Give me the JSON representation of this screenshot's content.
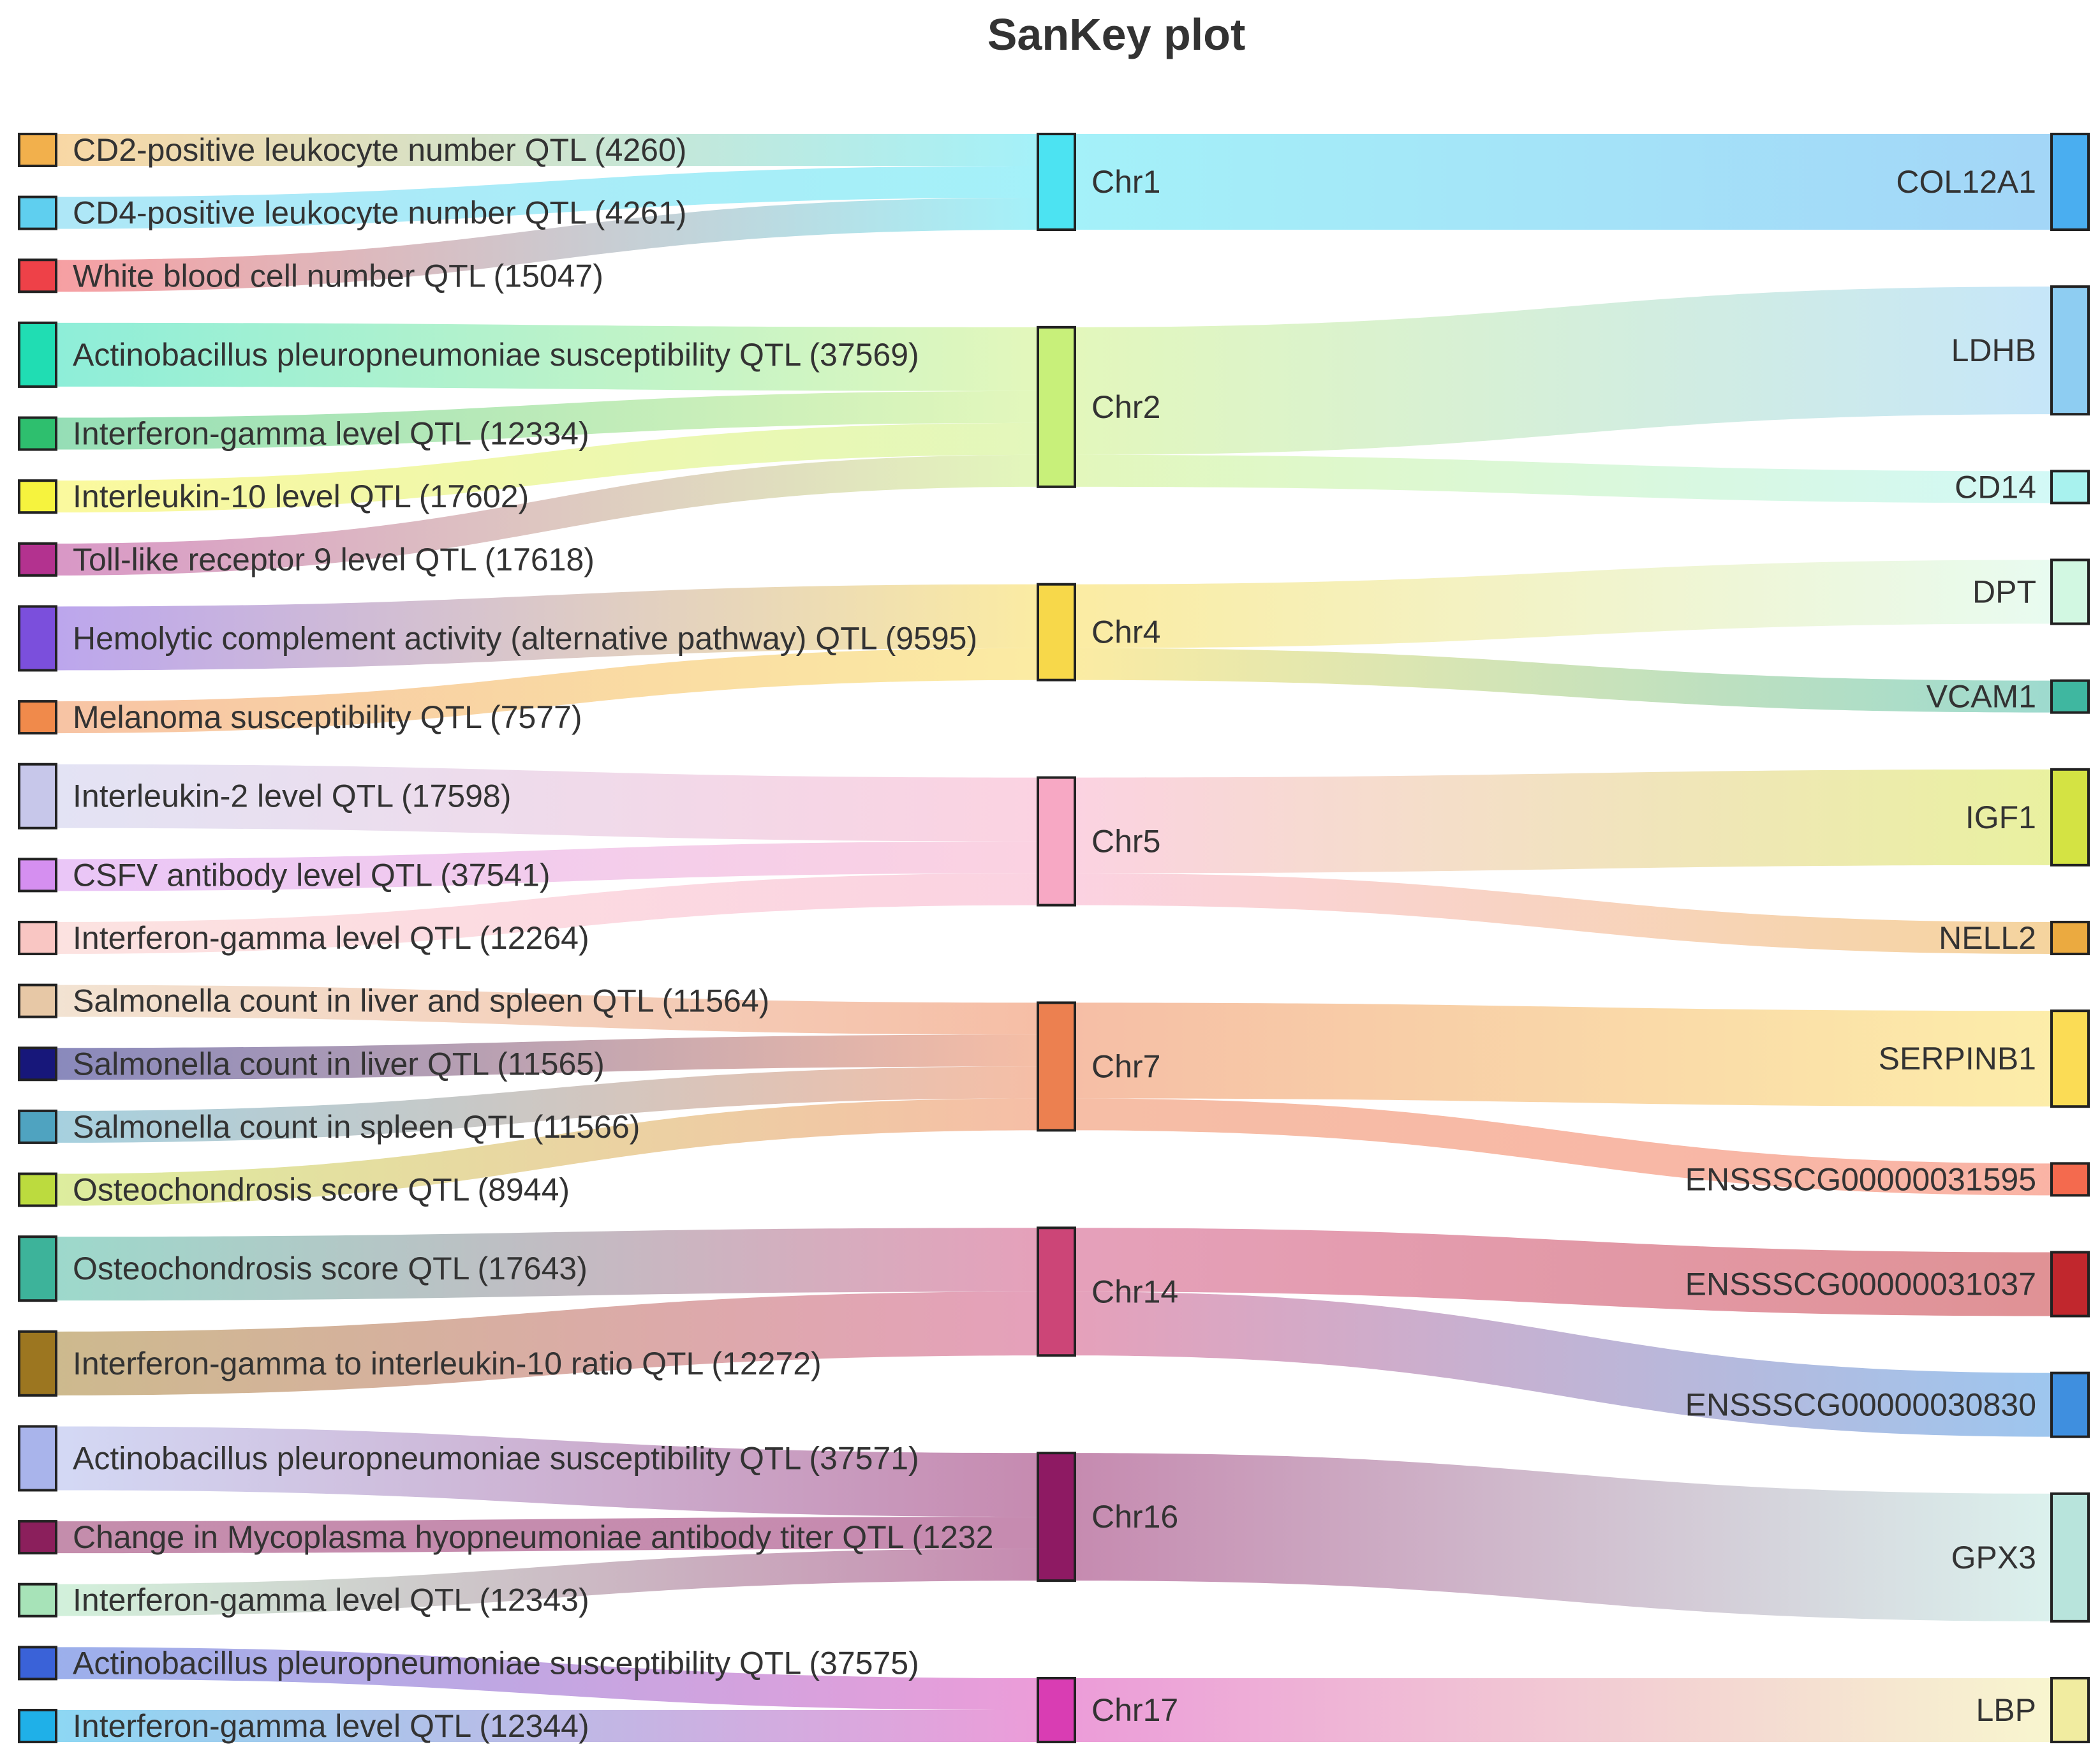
{
  "chart_data": {
    "type": "sankey",
    "title": "SanKey plot",
    "columns": [
      "qtl",
      "chromosome",
      "gene"
    ],
    "nodes": {
      "qtl": [
        {
          "id": "q1",
          "label": "CD2-positive leukocyte number QTL (4260)",
          "color": "#F2B04C"
        },
        {
          "id": "q2",
          "label": "CD4-positive leukocyte number QTL (4261)",
          "color": "#5FCFEF"
        },
        {
          "id": "q3",
          "label": "White blood cell number QTL (15047)",
          "color": "#EE4148"
        },
        {
          "id": "q4",
          "label": "Actinobacillus pleuropneumoniae susceptibility QTL (37569)",
          "color": "#20DDB3"
        },
        {
          "id": "q5",
          "label": "Interferon-gamma level QTL (12334)",
          "color": "#2EBF6E"
        },
        {
          "id": "q6",
          "label": "Interleukin-10 level QTL (17602)",
          "color": "#F6F33E"
        },
        {
          "id": "q7",
          "label": "Toll-like receptor 9 level QTL (17618)",
          "color": "#B3328F"
        },
        {
          "id": "q8",
          "label": "Hemolytic complement activity (alternative pathway) QTL (9595)",
          "color": "#7B4FDC"
        },
        {
          "id": "q9",
          "label": "Melanoma susceptibility QTL (7577)",
          "color": "#F08A4B"
        },
        {
          "id": "q10",
          "label": "Interleukin-2 level QTL (17598)",
          "color": "#C7C7EA"
        },
        {
          "id": "q11",
          "label": "CSFV antibody level QTL (37541)",
          "color": "#D58FF0"
        },
        {
          "id": "q12",
          "label": "Interferon-gamma level QTL (12264)",
          "color": "#F9C6C3"
        },
        {
          "id": "q13",
          "label": "Salmonella count in liver and spleen QTL (11564)",
          "color": "#E7C8A6"
        },
        {
          "id": "q14",
          "label": "Salmonella count in liver QTL (11565)",
          "color": "#17177A"
        },
        {
          "id": "q15",
          "label": "Salmonella count in spleen QTL (11566)",
          "color": "#4FA3C0"
        },
        {
          "id": "q16",
          "label": "Osteochondrosis score QTL (8944)",
          "color": "#BCDB3E"
        },
        {
          "id": "q17",
          "label": "Osteochondrosis score QTL (17643)",
          "color": "#3DB39A"
        },
        {
          "id": "q18",
          "label": "Interferon-gamma to interleukin-10 ratio QTL (12272)",
          "color": "#9C7620"
        },
        {
          "id": "q19",
          "label": "Actinobacillus pleuropneumoniae susceptibility QTL (37571)",
          "color": "#A9B4EB"
        },
        {
          "id": "q20",
          "label": "Change in Mycoplasma hyopneumoniae antibody titer QTL (1232",
          "color": "#8B1F5C"
        },
        {
          "id": "q21",
          "label": "Interferon-gamma level QTL (12343)",
          "color": "#A7E3B8"
        },
        {
          "id": "q22",
          "label": "Actinobacillus pleuropneumoniae susceptibility QTL (37575)",
          "color": "#3A62D8"
        },
        {
          "id": "q23",
          "label": "Interferon-gamma level QTL (12344)",
          "color": "#1FB0E8"
        }
      ],
      "chromosome": [
        {
          "id": "c1",
          "label": "Chr1",
          "color": "#4CE3F2"
        },
        {
          "id": "c2",
          "label": "Chr2",
          "color": "#C8F07A"
        },
        {
          "id": "c4",
          "label": "Chr4",
          "color": "#F7D84A"
        },
        {
          "id": "c5",
          "label": "Chr5",
          "color": "#F7A8C4"
        },
        {
          "id": "c7",
          "label": "Chr7",
          "color": "#EC8050"
        },
        {
          "id": "c14",
          "label": "Chr14",
          "color": "#CC4577"
        },
        {
          "id": "c16",
          "label": "Chr16",
          "color": "#8E1A63"
        },
        {
          "id": "c17",
          "label": "Chr17",
          "color": "#D93DB3"
        }
      ],
      "gene": [
        {
          "id": "g1",
          "label": "COL12A1",
          "color": "#4AAEF0"
        },
        {
          "id": "g2",
          "label": "LDHB",
          "color": "#8ECDF2"
        },
        {
          "id": "g3",
          "label": "CD14",
          "color": "#A8F2EE"
        },
        {
          "id": "g4",
          "label": "DPT",
          "color": "#D2F8E2"
        },
        {
          "id": "g5",
          "label": "VCAM1",
          "color": "#3FB7A0"
        },
        {
          "id": "g6",
          "label": "IGF1",
          "color": "#D4E343"
        },
        {
          "id": "g7",
          "label": "NELL2",
          "color": "#EBAA40"
        },
        {
          "id": "g8",
          "label": "SERPINB1",
          "color": "#FBDC55"
        },
        {
          "id": "g9",
          "label": "ENSSSCG00000031595",
          "color": "#F46A4E"
        },
        {
          "id": "g10",
          "label": "ENSSSCG00000031037",
          "color": "#C1272D"
        },
        {
          "id": "g11",
          "label": "ENSSSCG00000030830",
          "color": "#3F8FDF"
        },
        {
          "id": "g12",
          "label": "GPX3",
          "color": "#B8E4DC"
        },
        {
          "id": "g13",
          "label": "LBP",
          "color": "#F1ECA0"
        }
      ]
    },
    "links": [
      {
        "source": "q1",
        "target": "c1",
        "value": 1
      },
      {
        "source": "q2",
        "target": "c1",
        "value": 1
      },
      {
        "source": "q3",
        "target": "c1",
        "value": 1
      },
      {
        "source": "q4",
        "target": "c2",
        "value": 2
      },
      {
        "source": "q5",
        "target": "c2",
        "value": 1
      },
      {
        "source": "q6",
        "target": "c2",
        "value": 1
      },
      {
        "source": "q7",
        "target": "c2",
        "value": 1
      },
      {
        "source": "q8",
        "target": "c4",
        "value": 2
      },
      {
        "source": "q9",
        "target": "c4",
        "value": 1
      },
      {
        "source": "q10",
        "target": "c5",
        "value": 2
      },
      {
        "source": "q11",
        "target": "c5",
        "value": 1
      },
      {
        "source": "q12",
        "target": "c5",
        "value": 1
      },
      {
        "source": "q13",
        "target": "c7",
        "value": 1
      },
      {
        "source": "q14",
        "target": "c7",
        "value": 1
      },
      {
        "source": "q15",
        "target": "c7",
        "value": 1
      },
      {
        "source": "q16",
        "target": "c7",
        "value": 1
      },
      {
        "source": "q17",
        "target": "c14",
        "value": 2
      },
      {
        "source": "q18",
        "target": "c14",
        "value": 2
      },
      {
        "source": "q19",
        "target": "c16",
        "value": 2
      },
      {
        "source": "q20",
        "target": "c16",
        "value": 1
      },
      {
        "source": "q21",
        "target": "c16",
        "value": 1
      },
      {
        "source": "q22",
        "target": "c17",
        "value": 1
      },
      {
        "source": "q23",
        "target": "c17",
        "value": 1
      },
      {
        "source": "c1",
        "target": "g1",
        "value": 3
      },
      {
        "source": "c2",
        "target": "g2",
        "value": 4
      },
      {
        "source": "c2",
        "target": "g3",
        "value": 1
      },
      {
        "source": "c4",
        "target": "g4",
        "value": 2
      },
      {
        "source": "c4",
        "target": "g5",
        "value": 1
      },
      {
        "source": "c5",
        "target": "g6",
        "value": 3
      },
      {
        "source": "c5",
        "target": "g7",
        "value": 1
      },
      {
        "source": "c7",
        "target": "g8",
        "value": 3
      },
      {
        "source": "c7",
        "target": "g9",
        "value": 1
      },
      {
        "source": "c14",
        "target": "g10",
        "value": 2
      },
      {
        "source": "c14",
        "target": "g11",
        "value": 2
      },
      {
        "source": "c16",
        "target": "g12",
        "value": 4
      },
      {
        "source": "c17",
        "target": "g13",
        "value": 2
      }
    ]
  }
}
